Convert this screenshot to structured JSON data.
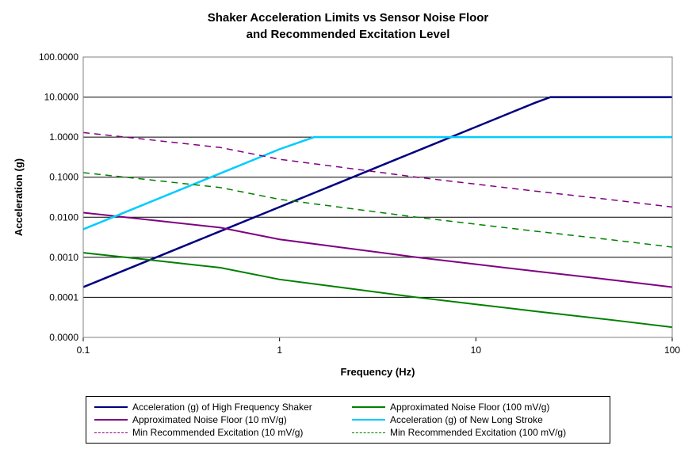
{
  "title_line1": "Shaker Acceleration Limits vs Sensor Noise Floor",
  "title_line2": "and Recommended Excitation Level",
  "xlabel": "Frequency (Hz)",
  "ylabel": "Acceleration (g)",
  "chart": {
    "type": "line-loglog",
    "xlim": [
      0.1,
      100
    ],
    "ylim": [
      1e-05,
      100
    ],
    "x_ticks": [
      0.1,
      1,
      10,
      100
    ],
    "x_tick_labels": [
      "0.1",
      "1",
      "10",
      "100"
    ],
    "y_ticks": [
      1e-05,
      0.0001,
      0.001,
      0.01,
      0.1,
      1,
      10,
      100
    ],
    "y_tick_labels": [
      "0.0000",
      "0.0001",
      "0.0010",
      "0.0100",
      "0.1000",
      "1.0000",
      "10.0000",
      "100.0000"
    ],
    "plot_bg": "#ffffff",
    "grid_color": "#000000",
    "grid_width": 1,
    "border_color": "#808080",
    "title_fontsize": 15,
    "label_fontsize": 13,
    "tick_fontsize": 12,
    "series": [
      {
        "name": "Acceleration (g) of High Frequency Shaker",
        "color": "#000080",
        "width": 2.5,
        "dash": "none",
        "x": [
          0.1,
          0.2,
          0.5,
          1,
          2,
          5,
          10,
          20,
          24,
          30,
          50,
          100
        ],
        "y": [
          0.00018,
          0.00072,
          0.0045,
          0.018,
          0.072,
          0.45,
          1.8,
          7.2,
          10,
          10,
          10,
          10
        ]
      },
      {
        "name": "Approximated Noise Floor (100 mV/g)",
        "color": "#008000",
        "width": 2,
        "dash": "none",
        "x": [
          0.1,
          0.2,
          0.5,
          1,
          2,
          5,
          10,
          20,
          50,
          100
        ],
        "y": [
          0.0013,
          0.0009,
          0.00055,
          0.00028,
          0.00018,
          0.0001,
          6.7e-05,
          4.5e-05,
          2.7e-05,
          1.8e-05
        ]
      },
      {
        "name": "Approximated Noise Floor (10 mV/g)",
        "color": "#800080",
        "width": 2,
        "dash": "none",
        "x": [
          0.1,
          0.2,
          0.5,
          1,
          2,
          5,
          10,
          20,
          50,
          100
        ],
        "y": [
          0.013,
          0.009,
          0.0055,
          0.0028,
          0.0018,
          0.001,
          0.00067,
          0.00045,
          0.00027,
          0.00018
        ]
      },
      {
        "name": "Acceleration (g) of New Long Stroke",
        "color": "#00ccff",
        "width": 2.5,
        "dash": "none",
        "x": [
          0.1,
          0.2,
          0.5,
          1,
          1.5,
          1.6,
          2,
          5,
          10,
          100
        ],
        "y": [
          0.005,
          0.02,
          0.125,
          0.5,
          1.0,
          1.0,
          1.0,
          1.0,
          1.0,
          1.0
        ]
      },
      {
        "name": "Min Recommended Excitation (10 mV/g)",
        "color": "#800080",
        "width": 1.5,
        "dash": "8,6",
        "x": [
          0.1,
          0.2,
          0.5,
          1,
          2,
          5,
          10,
          20,
          50,
          100
        ],
        "y": [
          1.3,
          0.9,
          0.55,
          0.28,
          0.18,
          0.1,
          0.067,
          0.045,
          0.027,
          0.018
        ]
      },
      {
        "name": "Min Recommended Excitation (100 mV/g)",
        "color": "#008000",
        "width": 1.5,
        "dash": "8,6",
        "x": [
          0.1,
          0.2,
          0.5,
          1,
          2,
          5,
          10,
          20,
          50,
          100
        ],
        "y": [
          0.13,
          0.09,
          0.055,
          0.028,
          0.018,
          0.01,
          0.0067,
          0.0045,
          0.0027,
          0.0018
        ]
      }
    ]
  },
  "legend_items": [
    {
      "label": "Acceleration (g) of High Frequency Shaker",
      "color": "#000080",
      "dash": "none",
      "width": 2.5
    },
    {
      "label": "Approximated Noise Floor (100 mV/g)",
      "color": "#008000",
      "dash": "none",
      "width": 2
    },
    {
      "label": "Approximated Noise Floor (10 mV/g)",
      "color": "#800080",
      "dash": "none",
      "width": 2
    },
    {
      "label": "Acceleration (g) of New Long Stroke",
      "color": "#00ccff",
      "dash": "none",
      "width": 2.5
    },
    {
      "label": "Min Recommended Excitation (10 mV/g)",
      "color": "#800080",
      "dash": "dashed",
      "width": 1.5
    },
    {
      "label": "Min Recommended Excitation (100 mV/g)",
      "color": "#008000",
      "dash": "dashed",
      "width": 1.5
    }
  ]
}
